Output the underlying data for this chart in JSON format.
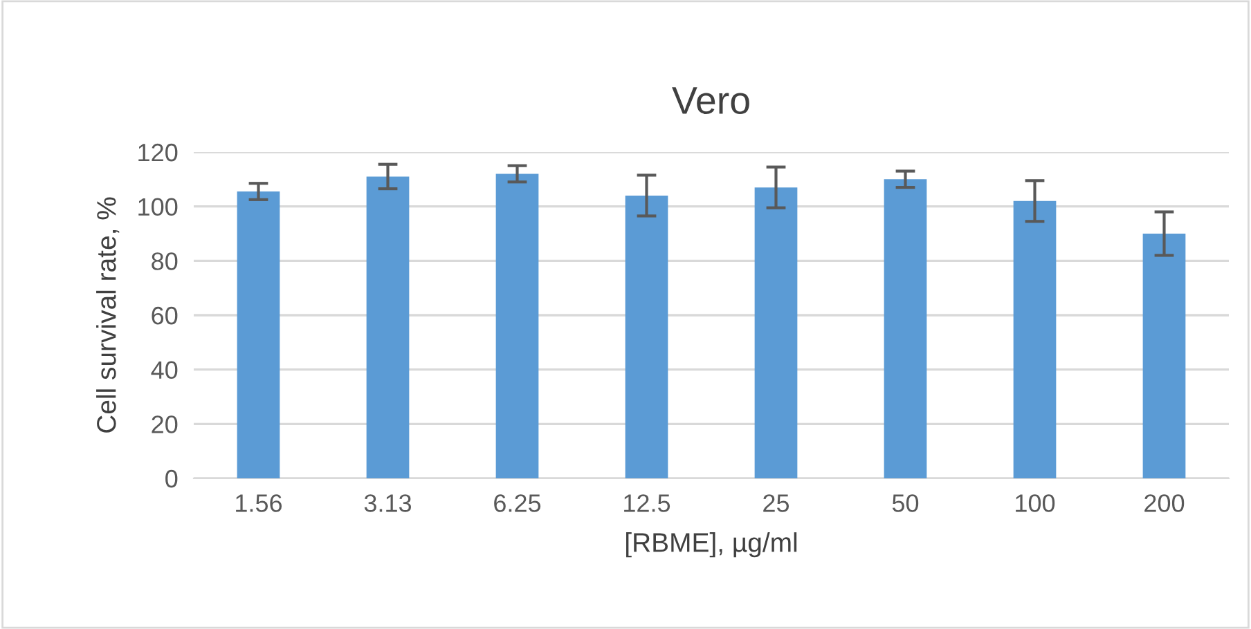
{
  "chart_data": {
    "type": "bar",
    "title": "Vero",
    "xlabel": "[RBME], µg/ml",
    "ylabel": "Cell survival rate, %",
    "categories": [
      "1.56",
      "3.13",
      "6.25",
      "12.5",
      "25",
      "50",
      "100",
      "200"
    ],
    "values": [
      105.5,
      111,
      112,
      104,
      107,
      110,
      102,
      90
    ],
    "errors": [
      3,
      4.5,
      3,
      7.5,
      7.5,
      3,
      7.5,
      8
    ],
    "color": "#5b9bd5",
    "ylim": [
      0,
      120
    ],
    "yticks": [
      0,
      20,
      40,
      60,
      80,
      100,
      120
    ],
    "grid": "y"
  }
}
